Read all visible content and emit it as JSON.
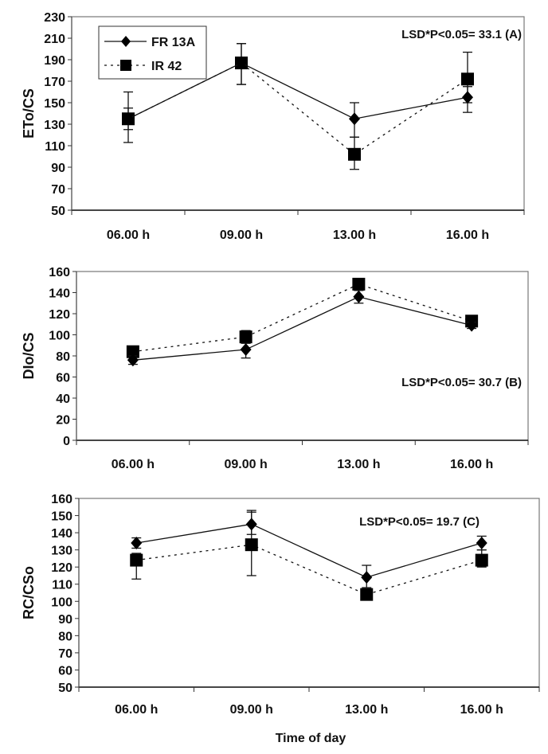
{
  "chart_data": [
    {
      "type": "line",
      "panel": "A",
      "ylabel": "ETo/CS",
      "xlabel": "",
      "categories": [
        "06.00 h",
        "09.00 h",
        "13.00 h",
        "16.00 h"
      ],
      "ylim": [
        50,
        230
      ],
      "yticks": [
        50,
        70,
        90,
        110,
        130,
        150,
        170,
        190,
        210,
        230
      ],
      "annotation": "LSD*P<0.05= 33.1 (A)",
      "annotation_position": "top-right",
      "legend": {
        "entries": [
          "FR 13A",
          "IR 42"
        ],
        "position": "top-left"
      },
      "grid": false,
      "series": [
        {
          "name": "FR 13A",
          "marker": "diamond",
          "line": "solid",
          "values": [
            135,
            187,
            135,
            155
          ],
          "err_low": [
            125,
            167,
            118,
            141
          ],
          "err_high": [
            145,
            205,
            150,
            165
          ]
        },
        {
          "name": "IR 42",
          "marker": "square",
          "line": "dotted",
          "values": [
            135,
            187,
            102,
            172
          ],
          "err_low": [
            113,
            167,
            88,
            150
          ],
          "err_high": [
            160,
            205,
            118,
            197
          ]
        }
      ]
    },
    {
      "type": "line",
      "panel": "B",
      "ylabel": "DIo/CS",
      "xlabel": "",
      "categories": [
        "06.00 h",
        "09.00 h",
        "13.00 h",
        "16.00 h"
      ],
      "ylim": [
        0,
        160
      ],
      "yticks": [
        0,
        20,
        40,
        60,
        80,
        100,
        120,
        140,
        160
      ],
      "annotation": "LSD*P<0.05= 30.7 (B)",
      "annotation_position": "middle-right",
      "grid": false,
      "series": [
        {
          "name": "FR 13A",
          "marker": "diamond",
          "line": "solid",
          "values": [
            76,
            86,
            136,
            109
          ],
          "err_low": [
            72,
            78,
            130,
            106
          ],
          "err_high": [
            80,
            92,
            142,
            112
          ]
        },
        {
          "name": "IR 42",
          "marker": "square",
          "line": "dotted",
          "values": [
            84,
            98,
            148,
            113
          ],
          "err_low": [
            80,
            92,
            144,
            109
          ],
          "err_high": [
            88,
            104,
            152,
            117
          ]
        }
      ]
    },
    {
      "type": "line",
      "panel": "C",
      "ylabel": "RC/CSo",
      "xlabel": "Time of day",
      "categories": [
        "06.00 h",
        "09.00 h",
        "13.00 h",
        "16.00 h"
      ],
      "ylim": [
        50,
        160
      ],
      "yticks": [
        50,
        60,
        70,
        80,
        90,
        100,
        110,
        120,
        130,
        140,
        150,
        160
      ],
      "annotation": "LSD*P<0.05= 19.7 (C)",
      "annotation_position": "top-right",
      "grid": false,
      "series": [
        {
          "name": "FR 13A",
          "marker": "diamond",
          "line": "solid",
          "values": [
            134,
            145,
            114,
            134
          ],
          "err_low": [
            131,
            139,
            108,
            130
          ],
          "err_high": [
            137,
            153,
            121,
            138
          ]
        },
        {
          "name": "IR 42",
          "marker": "square",
          "line": "dotted",
          "values": [
            124,
            133,
            104,
            124
          ],
          "err_low": [
            113,
            115,
            101,
            120
          ],
          "err_high": [
            128,
            152,
            107,
            130
          ]
        }
      ]
    }
  ]
}
